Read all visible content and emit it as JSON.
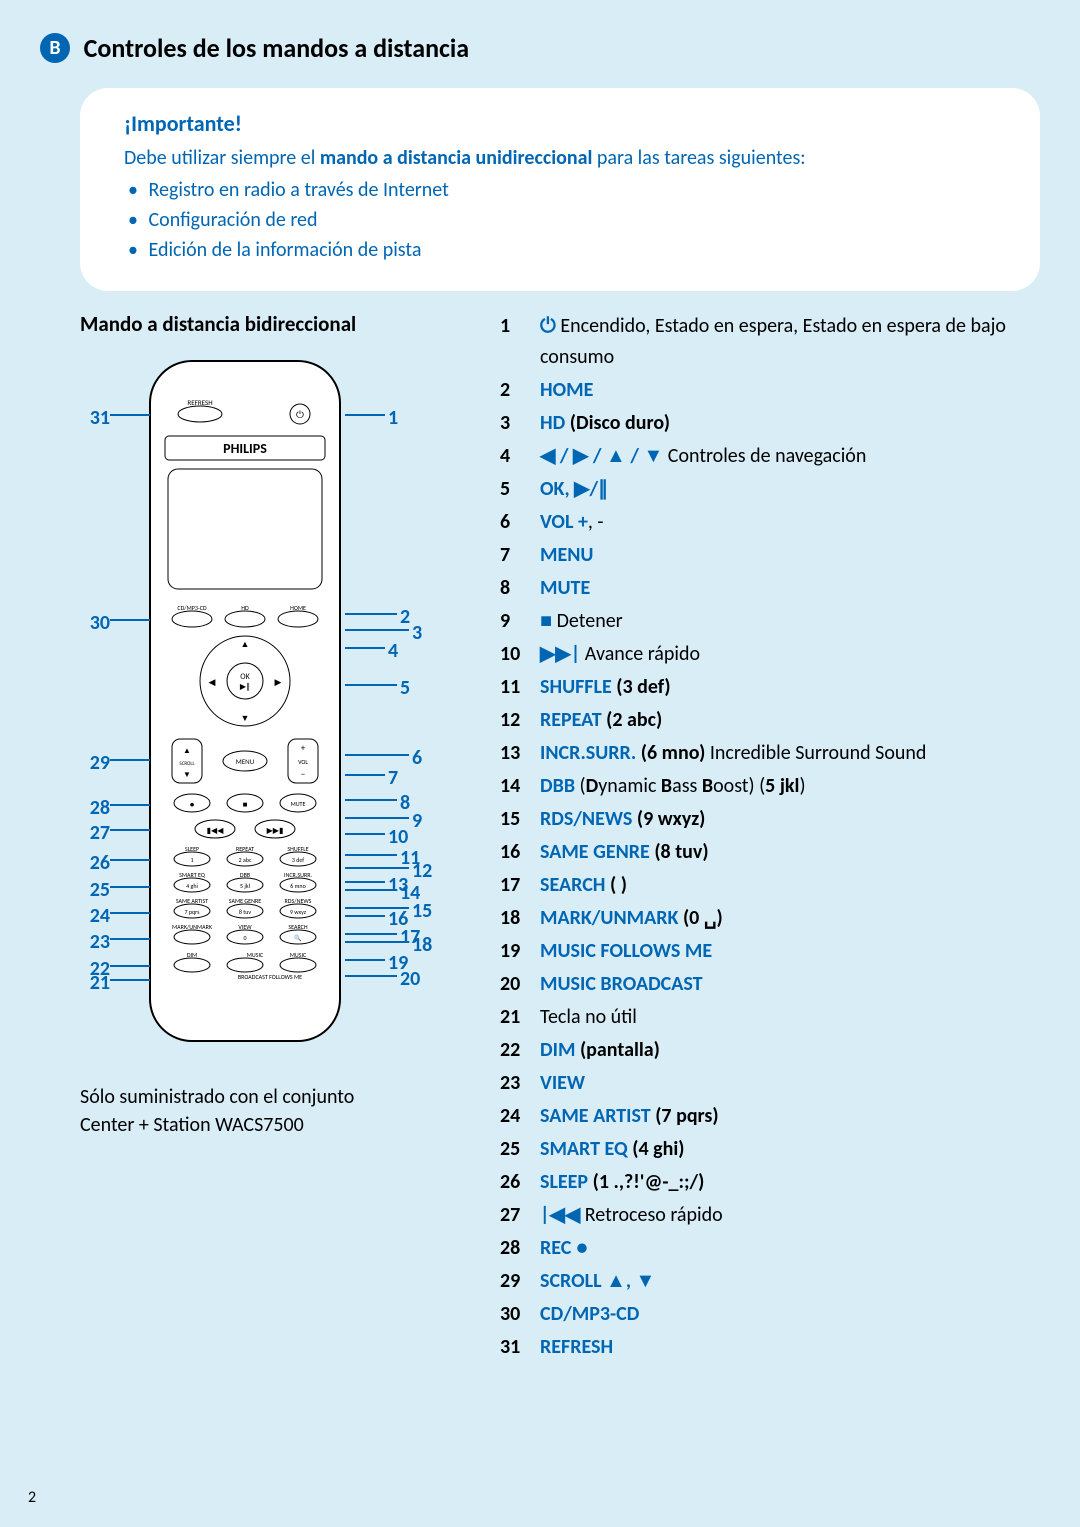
{
  "colors": {
    "accent": "#0066b3",
    "pageBg": "#d9edf7",
    "boxBg": "#ffffff"
  },
  "section": {
    "badge": "B",
    "title": "Controles de los mandos a distancia"
  },
  "important": {
    "title": "¡Importante!",
    "lead_pre": "Debe utilizar siempre el ",
    "lead_bold": "mando a distancia unidireccional",
    "lead_post": " para las tareas siguientes:",
    "items": [
      "Registro en radio a través de Internet",
      "Configuración de red",
      "Edición de la información de pista"
    ]
  },
  "left": {
    "heading": "Mando a distancia bidireccional",
    "brand": "PHILIPS",
    "caption1": "Sólo suministrado con el conjunto",
    "caption2": "Center + Station WACS7500",
    "calloutsLeft": [
      "31",
      "30",
      "29",
      "28",
      "27",
      "26",
      "25",
      "24",
      "23",
      "22",
      "21"
    ],
    "calloutsRight": [
      "1",
      "2",
      "3",
      "4",
      "5",
      "6",
      "7",
      "8",
      "9",
      "10",
      "11",
      "12",
      "13",
      "14",
      "15",
      "16",
      "17",
      "18",
      "19",
      "20"
    ]
  },
  "legend": [
    {
      "n": "1",
      "sym": "⏻",
      "text": " Encendido, Estado en espera, Estado en espera de bajo consumo"
    },
    {
      "n": "2",
      "blue": "HOME",
      "text": ""
    },
    {
      "n": "3",
      "blue": "HD",
      "text": " (Disco duro)"
    },
    {
      "n": "4",
      "nav": true,
      "text": " Controles de navegación"
    },
    {
      "n": "5",
      "blue": "OK",
      "sym2": ", ▶/∥",
      "text": ""
    },
    {
      "n": "6",
      "blue": "VOL +",
      "text": ", -"
    },
    {
      "n": "7",
      "blue": "MENU",
      "text": ""
    },
    {
      "n": "8",
      "blue": "MUTE",
      "text": ""
    },
    {
      "n": "9",
      "sym": "■",
      "text": " Detener"
    },
    {
      "n": "10",
      "sym": "▶▶|",
      "text": " Avance rápido"
    },
    {
      "n": "11",
      "blue": "SHUFFLE",
      "text": " (3 def)"
    },
    {
      "n": "12",
      "blue": "REPEAT",
      "text": " (2 abc)"
    },
    {
      "n": "13",
      "blue": "INCR.SURR.",
      "text": " (6 mno) Incredible Surround Sound"
    },
    {
      "n": "14",
      "blue": "DBB",
      "rich": " (<b>D</b>ynamic <b>B</b>ass <b>B</b>oost) (<b>5 jkl</b>)"
    },
    {
      "n": "15",
      "blue": "RDS/NEWS",
      "text": " (9 wxyz)"
    },
    {
      "n": "16",
      "blue": "SAME GENRE",
      "text": " (8 tuv)"
    },
    {
      "n": "17",
      "blue": "SEARCH",
      "text": " (   )"
    },
    {
      "n": "18",
      "blue": "MARK/UNMARK",
      "text": " (0 ␣)"
    },
    {
      "n": "19",
      "blue": "MUSIC FOLLOWS ME",
      "text": ""
    },
    {
      "n": "20",
      "blue": "MUSIC BROADCAST",
      "text": ""
    },
    {
      "n": "21",
      "text": "Tecla no útil"
    },
    {
      "n": "22",
      "blue": "DIM",
      "text": " (pantalla)"
    },
    {
      "n": "23",
      "blue": "VIEW",
      "text": ""
    },
    {
      "n": "24",
      "blue": "SAME ARTIST",
      "text": " (7 pqrs)"
    },
    {
      "n": "25",
      "blue": "SMART EQ",
      "text": " (4 ghi)"
    },
    {
      "n": "26",
      "blue": "SLEEP",
      "text": " (1 .,?!'@-_:;/)"
    },
    {
      "n": "27",
      "sym": "|◀◀",
      "text": " Retroceso rápido"
    },
    {
      "n": "28",
      "blue": "REC",
      "sym2": " ●",
      "text": ""
    },
    {
      "n": "29",
      "blue": "SCROLL",
      "sym2": " ▲, ▼",
      "text": ""
    },
    {
      "n": "30",
      "blue": "CD/MP3-CD",
      "text": ""
    },
    {
      "n": "31",
      "blue": "REFRESH",
      "text": ""
    }
  ],
  "pageNumber": "2"
}
